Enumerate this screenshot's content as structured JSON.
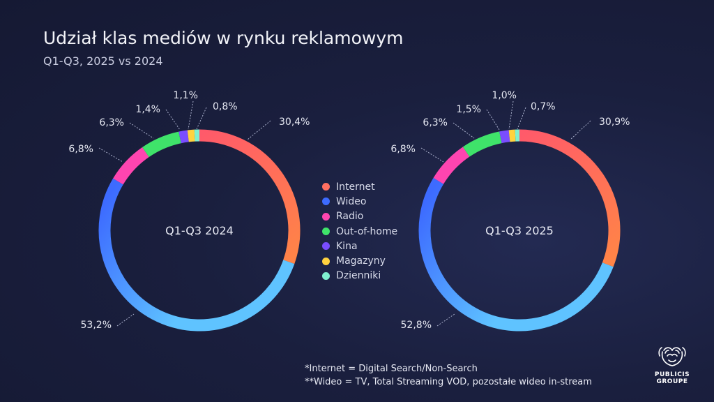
{
  "header": {
    "title": "Udział klas mediów w rynku reklamowym",
    "subtitle": "Q1-Q3, 2025 vs 2024"
  },
  "legend": [
    {
      "label": "Internet",
      "color": "#ff6f61"
    },
    {
      "label": "Wideo",
      "color": "#3d6bff"
    },
    {
      "label": "Radio",
      "color": "#ff45b0"
    },
    {
      "label": "Out-of-home",
      "color": "#3fe36a"
    },
    {
      "label": "Kina",
      "color": "#7a4dff"
    },
    {
      "label": "Magazyny",
      "color": "#ffd23f"
    },
    {
      "label": "Dzienniki",
      "color": "#7ff0d0"
    }
  ],
  "chart_data": [
    {
      "type": "pie",
      "center_label": "Q1-Q3 2024",
      "categories": [
        "Internet",
        "Wideo",
        "Radio",
        "Out-of-home",
        "Kina",
        "Magazyny",
        "Dzienniki"
      ],
      "values": [
        30.4,
        53.2,
        6.8,
        6.3,
        1.4,
        1.1,
        0.8
      ],
      "labels": [
        "30,4%",
        "53,2%",
        "6,8%",
        "6,3%",
        "1,4%",
        "1,1%",
        "0,8%"
      ]
    },
    {
      "type": "pie",
      "center_label": "Q1-Q3 2025",
      "categories": [
        "Internet",
        "Wideo",
        "Radio",
        "Out-of-home",
        "Kina",
        "Magazyny",
        "Dzienniki"
      ],
      "values": [
        30.9,
        52.8,
        6.8,
        6.3,
        1.5,
        1.0,
        0.7
      ],
      "labels": [
        "30,9%",
        "52,8%",
        "6,8%",
        "6,3%",
        "1,5%",
        "1,0%",
        "0,7%"
      ]
    }
  ],
  "footnotes": {
    "internet": "*Internet = Digital Search/Non-Search",
    "wideo": "**Wideo = TV, Total Streaming VOD, pozostałe wideo in-stream"
  },
  "logo": {
    "line1": "PUBLICIS",
    "line2": "GROUPE",
    "icon": "lion-head-icon"
  }
}
